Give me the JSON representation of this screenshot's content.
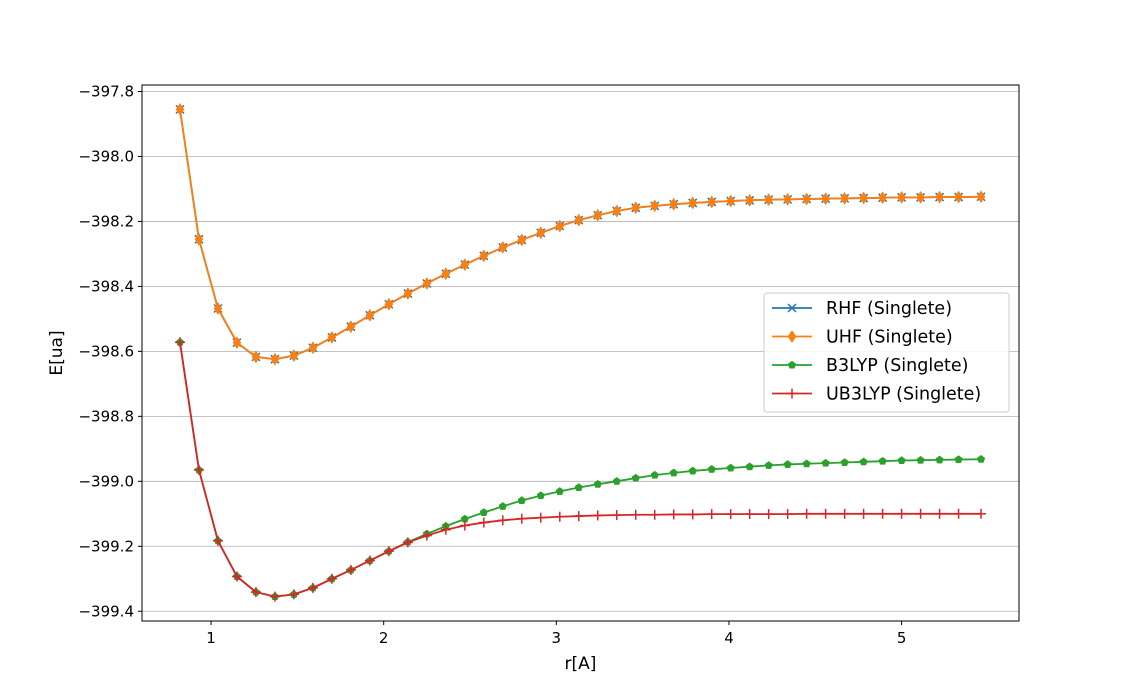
{
  "chart_data": {
    "type": "line",
    "title": "",
    "xlabel": "r[A]",
    "ylabel": "E[ua]",
    "xlim": [
      0.6,
      5.68
    ],
    "ylim": [
      -399.43,
      -397.78
    ],
    "xticks": [
      1,
      2,
      3,
      4,
      5
    ],
    "yticks": [
      -397.8,
      -398.0,
      -398.2,
      -398.4,
      -398.6,
      -398.8,
      -399.0,
      -399.2,
      -399.4
    ],
    "xtick_labels": [
      "1",
      "2",
      "3",
      "4",
      "5"
    ],
    "ytick_labels": [
      "−397.8",
      "−398.0",
      "−398.2",
      "−398.4",
      "−398.6",
      "−398.8",
      "−399.0",
      "−399.2",
      "−399.4"
    ],
    "grid": "horizontal",
    "legend_position": "center-right",
    "x": [
      0.82,
      0.93,
      1.04,
      1.15,
      1.26,
      1.37,
      1.48,
      1.59,
      1.7,
      1.81,
      1.92,
      2.03,
      2.14,
      2.25,
      2.36,
      2.47,
      2.58,
      2.69,
      2.8,
      2.91,
      3.02,
      3.13,
      3.24,
      3.35,
      3.46,
      3.57,
      3.68,
      3.79,
      3.9,
      4.01,
      4.12,
      4.23,
      4.34,
      4.45,
      4.56,
      4.67,
      4.78,
      4.89,
      5.0,
      5.11,
      5.22,
      5.33,
      5.46
    ],
    "series": [
      {
        "name": "RHF (Singlete)",
        "color": "#1f77b4",
        "marker": "x",
        "values": [
          -397.855,
          -398.255,
          -398.468,
          -398.573,
          -398.617,
          -398.624,
          -398.613,
          -398.589,
          -398.557,
          -398.524,
          -398.489,
          -398.455,
          -398.422,
          -398.391,
          -398.361,
          -398.333,
          -398.306,
          -398.28,
          -398.257,
          -398.235,
          -398.214,
          -398.196,
          -398.181,
          -398.168,
          -398.158,
          -398.152,
          -398.147,
          -398.143,
          -398.14,
          -398.137,
          -398.135,
          -398.133,
          -398.132,
          -398.131,
          -398.13,
          -398.129,
          -398.128,
          -398.127,
          -398.126,
          -398.126,
          -398.125,
          -398.125,
          -398.124
        ]
      },
      {
        "name": "UHF (Singlete)",
        "color": "#ff7f0e",
        "marker": "diamond",
        "values": [
          -397.855,
          -398.255,
          -398.468,
          -398.573,
          -398.617,
          -398.624,
          -398.613,
          -398.589,
          -398.557,
          -398.524,
          -398.489,
          -398.455,
          -398.422,
          -398.391,
          -398.361,
          -398.333,
          -398.306,
          -398.28,
          -398.257,
          -398.235,
          -398.214,
          -398.196,
          -398.181,
          -398.168,
          -398.158,
          -398.152,
          -398.147,
          -398.143,
          -398.14,
          -398.137,
          -398.135,
          -398.133,
          -398.132,
          -398.131,
          -398.13,
          -398.129,
          -398.128,
          -398.127,
          -398.126,
          -398.126,
          -398.125,
          -398.125,
          -398.124
        ]
      },
      {
        "name": "B3LYP (Singlete)",
        "color": "#2ca02c",
        "marker": "pentagon",
        "values": [
          -398.572,
          -398.965,
          -399.183,
          -399.293,
          -399.341,
          -399.355,
          -399.348,
          -399.328,
          -399.3,
          -399.273,
          -399.244,
          -399.215,
          -399.187,
          -399.162,
          -399.138,
          -399.116,
          -399.096,
          -399.077,
          -399.059,
          -399.044,
          -399.031,
          -399.019,
          -399.009,
          -399.0,
          -398.99,
          -398.981,
          -398.974,
          -398.968,
          -398.963,
          -398.959,
          -398.955,
          -398.951,
          -398.948,
          -398.946,
          -398.944,
          -398.942,
          -398.94,
          -398.938,
          -398.936,
          -398.935,
          -398.934,
          -398.933,
          -398.932
        ]
      },
      {
        "name": "UB3LYP (Singlete)",
        "color": "#d62728",
        "marker": "plus",
        "values": [
          -398.572,
          -398.965,
          -399.183,
          -399.293,
          -399.341,
          -399.355,
          -399.348,
          -399.328,
          -399.3,
          -399.273,
          -399.244,
          -399.215,
          -399.188,
          -399.167,
          -399.149,
          -399.136,
          -399.127,
          -399.12,
          -399.115,
          -399.112,
          -399.109,
          -399.107,
          -399.105,
          -399.104,
          -399.103,
          -399.103,
          -399.102,
          -399.102,
          -399.101,
          -399.101,
          -399.101,
          -399.101,
          -399.101,
          -399.1,
          -399.1,
          -399.1,
          -399.1,
          -399.1,
          -399.1,
          -399.1,
          -399.1,
          -399.1,
          -399.1
        ]
      }
    ]
  }
}
